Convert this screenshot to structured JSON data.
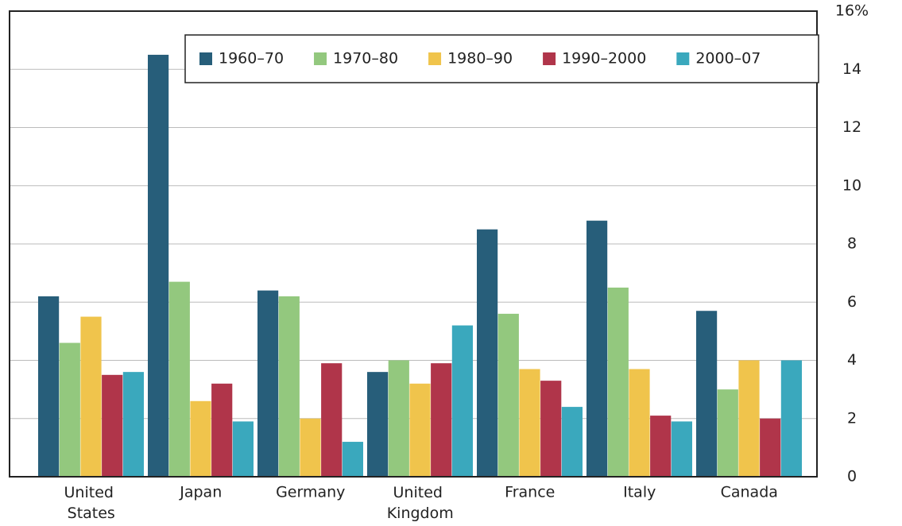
{
  "chart_data": {
    "type": "bar",
    "categories": [
      "United States",
      "Japan",
      "Germany",
      "United Kingdom",
      "France",
      "Italy",
      "Canada"
    ],
    "series": [
      {
        "name": "1960–70",
        "color": "#275e7a",
        "values": [
          6.2,
          14.5,
          6.4,
          3.6,
          8.5,
          8.8,
          5.7
        ]
      },
      {
        "name": "1970–80",
        "color": "#93c87e",
        "values": [
          4.6,
          6.7,
          6.2,
          4.0,
          5.6,
          6.5,
          3.0
        ]
      },
      {
        "name": "1980–90",
        "color": "#f0c44c",
        "values": [
          5.5,
          2.6,
          2.0,
          3.2,
          3.7,
          3.7,
          4.0
        ]
      },
      {
        "name": "1990–2000",
        "color": "#b0354a",
        "values": [
          3.5,
          3.2,
          3.9,
          3.9,
          3.3,
          2.1,
          2.0
        ]
      },
      {
        "name": "2000–07",
        "color": "#3aa8bd",
        "values": [
          3.6,
          1.9,
          1.2,
          5.2,
          2.4,
          1.9,
          4.0
        ]
      }
    ],
    "ylim": [
      0,
      16
    ],
    "yticks": [
      0,
      2,
      4,
      6,
      8,
      10,
      12,
      14,
      {
        "value": 16,
        "label": "16%"
      }
    ],
    "grid": true,
    "legend": "top-right"
  }
}
